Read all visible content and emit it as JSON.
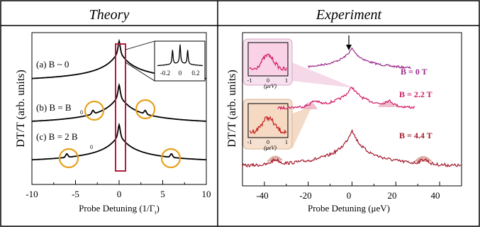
{
  "panels": {
    "theory": {
      "header": "Theory",
      "ylabel": "DT/T (arb. units)",
      "xlabel_main": "Probe Detuning (1/Γ",
      "xlabel_sub": "t",
      "xlabel_close": ")",
      "labels": {
        "a": "(a) B ~ 0",
        "b_main": "(b) B = B",
        "b_sub": "0",
        "c_main": "(c) B = 2 B",
        "c_sub": "0"
      },
      "xticks": [
        "-10",
        "-5",
        "0",
        "5",
        "10"
      ],
      "inset_ticks": [
        "-0.2",
        "0",
        "0.2"
      ]
    },
    "experiment": {
      "header": "Experiment",
      "ylabel": "DT/T (arb. units)",
      "xlabel_main": "Probe Detuning",
      "xlabel_unit": "(μeV)",
      "labels": {
        "b0": "B = 0 T",
        "b22": "B = 2.2 T",
        "b44": "B = 4.4 T"
      },
      "xticks": [
        "-40",
        "-20",
        "0",
        "20",
        "40"
      ],
      "inset_ticks": [
        "-1",
        "0",
        "1"
      ],
      "inset_unit": "(μeV)"
    }
  },
  "chart_data": [
    {
      "type": "line",
      "panel": "Theory",
      "xlim": [
        -10,
        10
      ],
      "series": [
        {
          "label": "(a) B ~ 0",
          "peaks": [
            0
          ]
        },
        {
          "label": "(b) B = B0",
          "peaks": [
            -3,
            0,
            3
          ]
        },
        {
          "label": "(c) B = 2 B0",
          "peaks": [
            -6,
            0,
            6
          ]
        }
      ],
      "inset": {
        "xlim": [
          -0.3,
          0.3
        ],
        "peaks": [
          -0.1,
          0,
          0.1
        ]
      }
    },
    {
      "type": "line",
      "panel": "Experiment",
      "xlim": [
        -50,
        50
      ],
      "series": [
        {
          "label": "B = 0 T",
          "color": "#9b2a8a",
          "peaks": [
            0
          ]
        },
        {
          "label": "B = 2.2 T",
          "color": "#d01a64",
          "peaks": [
            -17,
            0,
            17
          ]
        },
        {
          "label": "B = 4.4 T",
          "color": "#a4182c",
          "peaks": [
            -35,
            0,
            33
          ]
        }
      ]
    }
  ],
  "colors": {
    "circle": "#e6a21f",
    "box": "#b41e3c",
    "b0": "#9b2a8a",
    "b22": "#d01a64",
    "b44": "#a4182c",
    "inset1_bg": "#f7e1ef",
    "inset2_bg": "#f6e0cf"
  }
}
